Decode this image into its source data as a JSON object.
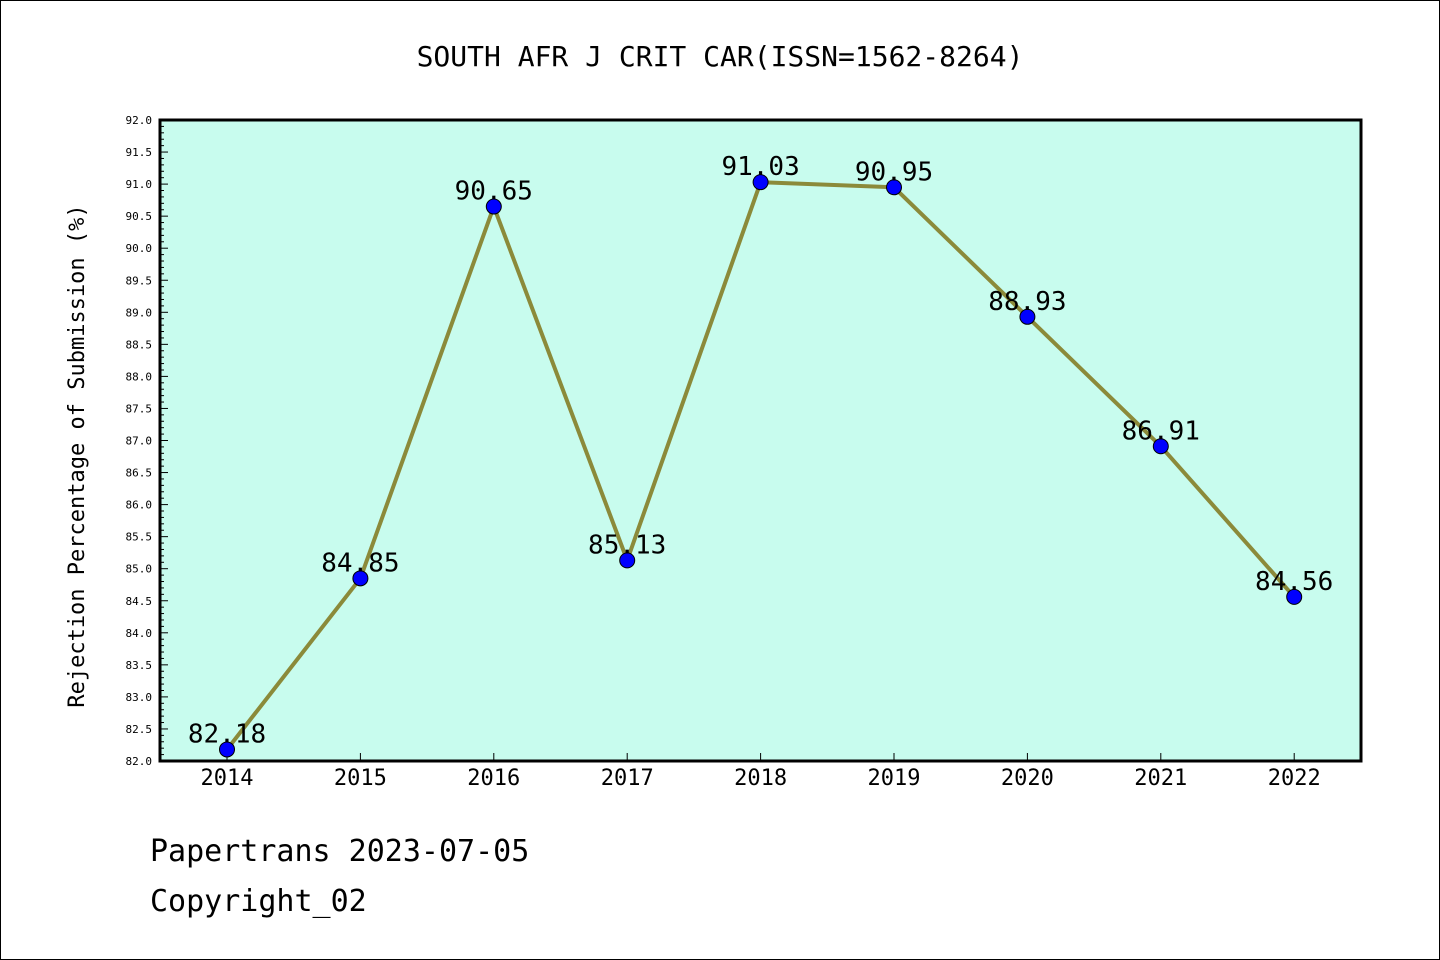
{
  "chart_data": {
    "type": "line",
    "title": "SOUTH AFR J CRIT CAR(ISSN=1562-8264)",
    "xlabel": "",
    "ylabel": "Rejection Percentage of Submission (%)",
    "categories": [
      "2014",
      "2015",
      "2016",
      "2017",
      "2018",
      "2019",
      "2020",
      "2021",
      "2022"
    ],
    "values": [
      82.18,
      84.85,
      90.65,
      85.13,
      91.03,
      90.95,
      88.93,
      86.91,
      84.56
    ],
    "data_labels": [
      "82.18",
      "84.85",
      "90.65",
      "85.13",
      "91.03",
      "90.95",
      "88.93",
      "86.91",
      "84.56"
    ],
    "ylim": [
      82.0,
      92.0
    ],
    "yticks": [
      "82.0",
      "82.5",
      "83.0",
      "83.5",
      "84.0",
      "84.5",
      "85.0",
      "85.5",
      "86.0",
      "86.5",
      "87.0",
      "87.5",
      "88.0",
      "88.5",
      "89.0",
      "89.5",
      "90.0",
      "90.5",
      "91.0",
      "91.5",
      "92.0"
    ],
    "grid": false,
    "colors": {
      "plot_background": "#c8fcee",
      "line": "#8b8a3a",
      "marker": "#0000ff"
    }
  },
  "footer": {
    "line1": "Papertrans 2023-07-05",
    "line2": "Copyright_02"
  }
}
